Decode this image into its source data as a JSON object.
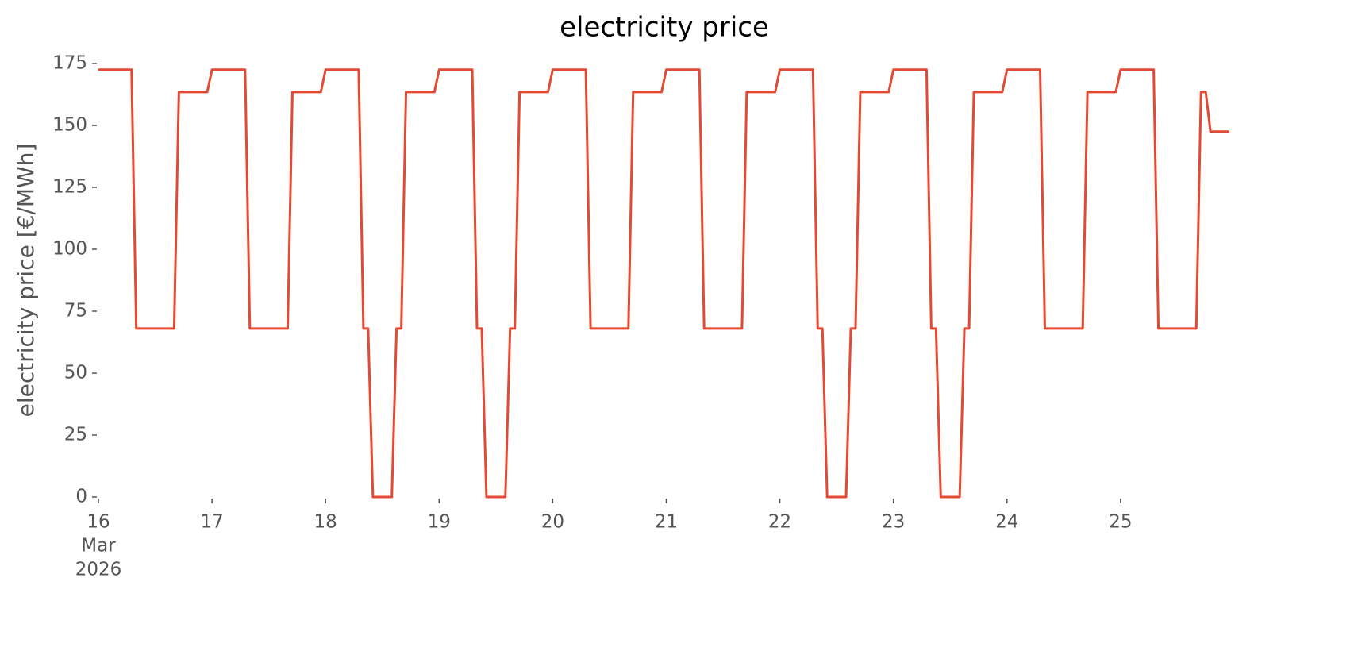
{
  "chart_data": {
    "type": "line",
    "title": "electricity price",
    "y_label": "electricity price [€/MWh]",
    "color": "#e24a33",
    "ylim": [
      0,
      175
    ],
    "yticks": [
      0,
      25,
      50,
      75,
      100,
      125,
      150,
      175
    ],
    "xlim": [
      "2026-03-16T00:00",
      "2026-03-25T23:00"
    ],
    "xticks": [
      {
        "value": "2026-03-16T00:00",
        "label": [
          "16",
          "Mar",
          "2026"
        ]
      },
      {
        "value": "2026-03-17T00:00",
        "label": "17"
      },
      {
        "value": "2026-03-18T00:00",
        "label": "18"
      },
      {
        "value": "2026-03-19T00:00",
        "label": "19"
      },
      {
        "value": "2026-03-20T00:00",
        "label": "20"
      },
      {
        "value": "2026-03-21T00:00",
        "label": "21"
      },
      {
        "value": "2026-03-22T00:00",
        "label": "22"
      },
      {
        "value": "2026-03-23T00:00",
        "label": "23"
      },
      {
        "value": "2026-03-24T00:00",
        "label": "24"
      },
      {
        "value": "2026-03-25T00:00",
        "label": "25"
      }
    ],
    "x": [
      "2026-03-16T00:00",
      "2026-03-16T01:00",
      "2026-03-16T02:00",
      "2026-03-16T03:00",
      "2026-03-16T04:00",
      "2026-03-16T05:00",
      "2026-03-16T06:00",
      "2026-03-16T07:00",
      "2026-03-16T08:00",
      "2026-03-16T09:00",
      "2026-03-16T10:00",
      "2026-03-16T11:00",
      "2026-03-16T12:00",
      "2026-03-16T13:00",
      "2026-03-16T14:00",
      "2026-03-16T15:00",
      "2026-03-16T16:00",
      "2026-03-16T17:00",
      "2026-03-16T18:00",
      "2026-03-16T19:00",
      "2026-03-16T20:00",
      "2026-03-16T21:00",
      "2026-03-16T22:00",
      "2026-03-16T23:00",
      "2026-03-17T00:00",
      "2026-03-17T01:00",
      "2026-03-17T02:00",
      "2026-03-17T03:00",
      "2026-03-17T04:00",
      "2026-03-17T05:00",
      "2026-03-17T06:00",
      "2026-03-17T07:00",
      "2026-03-17T08:00",
      "2026-03-17T09:00",
      "2026-03-17T10:00",
      "2026-03-17T11:00",
      "2026-03-17T12:00",
      "2026-03-17T13:00",
      "2026-03-17T14:00",
      "2026-03-17T15:00",
      "2026-03-17T16:00",
      "2026-03-17T17:00",
      "2026-03-17T18:00",
      "2026-03-17T19:00",
      "2026-03-17T20:00",
      "2026-03-17T21:00",
      "2026-03-17T22:00",
      "2026-03-17T23:00",
      "2026-03-18T00:00",
      "2026-03-18T01:00",
      "2026-03-18T02:00",
      "2026-03-18T03:00",
      "2026-03-18T04:00",
      "2026-03-18T05:00",
      "2026-03-18T06:00",
      "2026-03-18T07:00",
      "2026-03-18T08:00",
      "2026-03-18T09:00",
      "2026-03-18T10:00",
      "2026-03-18T11:00",
      "2026-03-18T12:00",
      "2026-03-18T13:00",
      "2026-03-18T14:00",
      "2026-03-18T15:00",
      "2026-03-18T16:00",
      "2026-03-18T17:00",
      "2026-03-18T18:00",
      "2026-03-18T19:00",
      "2026-03-18T20:00",
      "2026-03-18T21:00",
      "2026-03-18T22:00",
      "2026-03-18T23:00",
      "2026-03-19T00:00",
      "2026-03-19T01:00",
      "2026-03-19T02:00",
      "2026-03-19T03:00",
      "2026-03-19T04:00",
      "2026-03-19T05:00",
      "2026-03-19T06:00",
      "2026-03-19T07:00",
      "2026-03-19T08:00",
      "2026-03-19T09:00",
      "2026-03-19T10:00",
      "2026-03-19T11:00",
      "2026-03-19T12:00",
      "2026-03-19T13:00",
      "2026-03-19T14:00",
      "2026-03-19T15:00",
      "2026-03-19T16:00",
      "2026-03-19T17:00",
      "2026-03-19T18:00",
      "2026-03-19T19:00",
      "2026-03-19T20:00",
      "2026-03-19T21:00",
      "2026-03-19T22:00",
      "2026-03-19T23:00",
      "2026-03-20T00:00",
      "2026-03-20T01:00",
      "2026-03-20T02:00",
      "2026-03-20T03:00",
      "2026-03-20T04:00",
      "2026-03-20T05:00",
      "2026-03-20T06:00",
      "2026-03-20T07:00",
      "2026-03-20T08:00",
      "2026-03-20T09:00",
      "2026-03-20T10:00",
      "2026-03-20T11:00",
      "2026-03-20T12:00",
      "2026-03-20T13:00",
      "2026-03-20T14:00",
      "2026-03-20T15:00",
      "2026-03-20T16:00",
      "2026-03-20T17:00",
      "2026-03-20T18:00",
      "2026-03-20T19:00",
      "2026-03-20T20:00",
      "2026-03-20T21:00",
      "2026-03-20T22:00",
      "2026-03-20T23:00",
      "2026-03-21T00:00",
      "2026-03-21T01:00",
      "2026-03-21T02:00",
      "2026-03-21T03:00",
      "2026-03-21T04:00",
      "2026-03-21T05:00",
      "2026-03-21T06:00",
      "2026-03-21T07:00",
      "2026-03-21T08:00",
      "2026-03-21T09:00",
      "2026-03-21T10:00",
      "2026-03-21T11:00",
      "2026-03-21T12:00",
      "2026-03-21T13:00",
      "2026-03-21T14:00",
      "2026-03-21T15:00",
      "2026-03-21T16:00",
      "2026-03-21T17:00",
      "2026-03-21T18:00",
      "2026-03-21T19:00",
      "2026-03-21T20:00",
      "2026-03-21T21:00",
      "2026-03-21T22:00",
      "2026-03-21T23:00",
      "2026-03-22T00:00",
      "2026-03-22T01:00",
      "2026-03-22T02:00",
      "2026-03-22T03:00",
      "2026-03-22T04:00",
      "2026-03-22T05:00",
      "2026-03-22T06:00",
      "2026-03-22T07:00",
      "2026-03-22T08:00",
      "2026-03-22T09:00",
      "2026-03-22T10:00",
      "2026-03-22T11:00",
      "2026-03-22T12:00",
      "2026-03-22T13:00",
      "2026-03-22T14:00",
      "2026-03-22T15:00",
      "2026-03-22T16:00",
      "2026-03-22T17:00",
      "2026-03-22T18:00",
      "2026-03-22T19:00",
      "2026-03-22T20:00",
      "2026-03-22T21:00",
      "2026-03-22T22:00",
      "2026-03-22T23:00",
      "2026-03-23T00:00",
      "2026-03-23T01:00",
      "2026-03-23T02:00",
      "2026-03-23T03:00",
      "2026-03-23T04:00",
      "2026-03-23T05:00",
      "2026-03-23T06:00",
      "2026-03-23T07:00",
      "2026-03-23T08:00",
      "2026-03-23T09:00",
      "2026-03-23T10:00",
      "2026-03-23T11:00",
      "2026-03-23T12:00",
      "2026-03-23T13:00",
      "2026-03-23T14:00",
      "2026-03-23T15:00",
      "2026-03-23T16:00",
      "2026-03-23T17:00",
      "2026-03-23T18:00",
      "2026-03-23T19:00",
      "2026-03-23T20:00",
      "2026-03-23T21:00",
      "2026-03-23T22:00",
      "2026-03-23T23:00",
      "2026-03-24T00:00",
      "2026-03-24T01:00",
      "2026-03-24T02:00",
      "2026-03-24T03:00",
      "2026-03-24T04:00",
      "2026-03-24T05:00",
      "2026-03-24T06:00",
      "2026-03-24T07:00",
      "2026-03-24T08:00",
      "2026-03-24T09:00",
      "2026-03-24T10:00",
      "2026-03-24T11:00",
      "2026-03-24T12:00",
      "2026-03-24T13:00",
      "2026-03-24T14:00",
      "2026-03-24T15:00",
      "2026-03-24T16:00",
      "2026-03-24T17:00",
      "2026-03-24T18:00",
      "2026-03-24T19:00",
      "2026-03-24T20:00",
      "2026-03-24T21:00",
      "2026-03-24T22:00",
      "2026-03-24T23:00",
      "2026-03-25T00:00",
      "2026-03-25T01:00",
      "2026-03-25T02:00",
      "2026-03-25T03:00",
      "2026-03-25T04:00",
      "2026-03-25T05:00",
      "2026-03-25T06:00",
      "2026-03-25T07:00",
      "2026-03-25T08:00",
      "2026-03-25T09:00",
      "2026-03-25T10:00",
      "2026-03-25T11:00",
      "2026-03-25T12:00",
      "2026-03-25T13:00",
      "2026-03-25T14:00",
      "2026-03-25T15:00",
      "2026-03-25T16:00",
      "2026-03-25T17:00",
      "2026-03-25T18:00",
      "2026-03-25T19:00",
      "2026-03-25T20:00",
      "2026-03-25T21:00",
      "2026-03-25T22:00",
      "2026-03-25T23:00"
    ],
    "values": [
      172.5,
      172.5,
      172.5,
      172.5,
      172.5,
      172.5,
      172.5,
      172.5,
      68,
      68,
      68,
      68,
      68,
      68,
      68,
      68,
      68,
      163.5,
      163.5,
      163.5,
      163.5,
      163.5,
      163.5,
      163.5,
      172.5,
      172.5,
      172.5,
      172.5,
      172.5,
      172.5,
      172.5,
      172.5,
      68,
      68,
      68,
      68,
      68,
      68,
      68,
      68,
      68,
      163.5,
      163.5,
      163.5,
      163.5,
      163.5,
      163.5,
      163.5,
      172.5,
      172.5,
      172.5,
      172.5,
      172.5,
      172.5,
      172.5,
      172.5,
      68,
      68,
      0,
      0,
      0,
      0,
      0,
      68,
      68,
      163.5,
      163.5,
      163.5,
      163.5,
      163.5,
      163.5,
      163.5,
      172.5,
      172.5,
      172.5,
      172.5,
      172.5,
      172.5,
      172.5,
      172.5,
      68,
      68,
      0,
      0,
      0,
      0,
      0,
      68,
      68,
      163.5,
      163.5,
      163.5,
      163.5,
      163.5,
      163.5,
      163.5,
      172.5,
      172.5,
      172.5,
      172.5,
      172.5,
      172.5,
      172.5,
      172.5,
      68,
      68,
      68,
      68,
      68,
      68,
      68,
      68,
      68,
      163.5,
      163.5,
      163.5,
      163.5,
      163.5,
      163.5,
      163.5,
      172.5,
      172.5,
      172.5,
      172.5,
      172.5,
      172.5,
      172.5,
      172.5,
      68,
      68,
      68,
      68,
      68,
      68,
      68,
      68,
      68,
      163.5,
      163.5,
      163.5,
      163.5,
      163.5,
      163.5,
      163.5,
      172.5,
      172.5,
      172.5,
      172.5,
      172.5,
      172.5,
      172.5,
      172.5,
      68,
      68,
      0,
      0,
      0,
      0,
      0,
      68,
      68,
      163.5,
      163.5,
      163.5,
      163.5,
      163.5,
      163.5,
      163.5,
      172.5,
      172.5,
      172.5,
      172.5,
      172.5,
      172.5,
      172.5,
      172.5,
      68,
      68,
      0,
      0,
      0,
      0,
      0,
      68,
      68,
      163.5,
      163.5,
      163.5,
      163.5,
      163.5,
      163.5,
      163.5,
      172.5,
      172.5,
      172.5,
      172.5,
      172.5,
      172.5,
      172.5,
      172.5,
      68,
      68,
      68,
      68,
      68,
      68,
      68,
      68,
      68,
      163.5,
      163.5,
      163.5,
      163.5,
      163.5,
      163.5,
      163.5,
      172.5,
      172.5,
      172.5,
      172.5,
      172.5,
      172.5,
      172.5,
      172.5,
      68,
      68,
      68,
      68,
      68,
      68,
      68,
      68,
      68,
      163.5,
      163.5,
      147.5,
      147.5,
      147.5,
      147.5,
      147.5
    ]
  }
}
